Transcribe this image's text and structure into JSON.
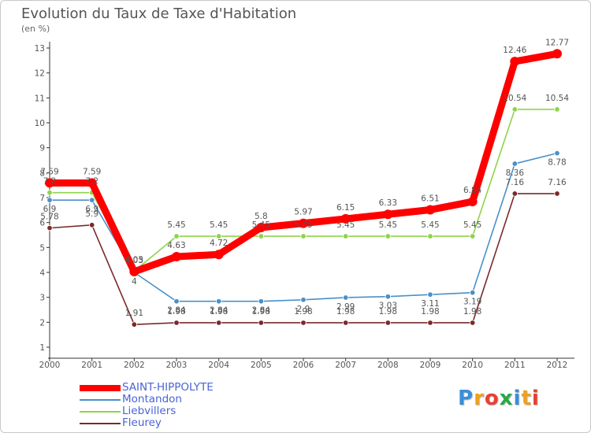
{
  "chart_data": {
    "type": "line",
    "title": "Evolution du Taux de Taxe d'Habitation",
    "subtitle": "(en %)",
    "x": [
      "2000",
      "2001",
      "2002",
      "2003",
      "2004",
      "2005",
      "2006",
      "2007",
      "2008",
      "2009",
      "2010",
      "2011",
      "2012"
    ],
    "ylim": [
      1,
      13
    ],
    "yticks": [
      1,
      2,
      3,
      4,
      5,
      6,
      7,
      8,
      9,
      10,
      11,
      12,
      13
    ],
    "grid": false,
    "legend_position": "bottom-left",
    "series": [
      {
        "name": "SAINT-HIPPOLYTE",
        "color": "#ff0000",
        "values": [
          7.59,
          7.59,
          4.03,
          4.63,
          4.72,
          5.8,
          5.97,
          6.15,
          6.33,
          6.51,
          6.84,
          12.46,
          12.77
        ],
        "labels": [
          "7.59",
          "7.59",
          "4.03",
          "4.63",
          "4.72",
          "5.8",
          "5.97",
          "6.15",
          "6.33",
          "6.51",
          "6.84",
          "12.46",
          "12.77"
        ]
      },
      {
        "name": "Montandon",
        "color": "#4a90c8",
        "values": [
          6.9,
          6.9,
          4.0,
          2.84,
          2.84,
          2.84,
          2.9,
          2.99,
          3.03,
          3.11,
          3.19,
          8.36,
          8.78
        ],
        "labels": [
          "6.9",
          "6.9",
          "4",
          "2.84",
          "2.84",
          "2.84",
          "2.9",
          "2.99",
          "3.03",
          "3.11",
          "3.19",
          "8.36",
          "8.78"
        ]
      },
      {
        "name": "Liebvillers",
        "color": "#8ed44a",
        "values": [
          7.2,
          7.2,
          4.05,
          5.45,
          5.45,
          5.45,
          5.45,
          5.45,
          5.45,
          5.45,
          5.45,
          10.54,
          10.54
        ],
        "labels": [
          "7.2",
          "7.2",
          "4.05",
          "5.45",
          "5.45",
          "5.45",
          "5.45",
          "5.45",
          "5.45",
          "5.45",
          "5.45",
          "10.54",
          "10.54"
        ]
      },
      {
        "name": "Fleurey",
        "color": "#7a2a2a",
        "values": [
          5.78,
          5.9,
          1.91,
          1.98,
          1.98,
          1.98,
          1.98,
          1.98,
          1.98,
          1.98,
          1.98,
          7.16,
          7.16
        ],
        "labels": [
          "5.78",
          "5.9",
          "1.91",
          "1.98",
          "1.98",
          "1.98",
          "1.98",
          "1.98",
          "1.98",
          "1.98",
          "1.98",
          "7.16",
          "7.16"
        ]
      }
    ]
  },
  "legend": {
    "items": [
      {
        "label": "SAINT-HIPPOLYTE",
        "color": "#ff0000"
      },
      {
        "label": "Montandon",
        "color": "#4a90c8"
      },
      {
        "label": "Liebvillers",
        "color": "#8ed44a"
      },
      {
        "label": "Fleurey",
        "color": "#7a2a2a"
      }
    ]
  },
  "brand": {
    "letters": [
      "P",
      "r",
      "o",
      "x",
      "i",
      "t",
      "i"
    ],
    "colors": [
      "#3a8fd8",
      "#f0a020",
      "#e84030",
      "#2aa84a",
      "#3a8fd8",
      "#f0a020",
      "#e84030"
    ]
  }
}
